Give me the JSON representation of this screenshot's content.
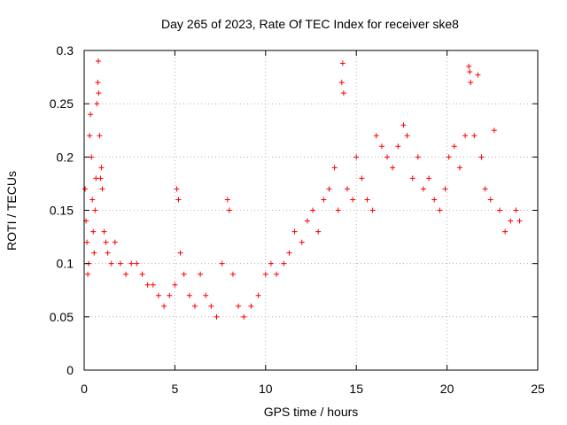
{
  "chart_data": {
    "type": "scatter",
    "title": "Day 265 of 2023, Rate Of TEC Index for receiver ske8",
    "xlabel": "GPS time / hours",
    "ylabel": "ROTI / TECUs",
    "xlim": [
      0,
      25
    ],
    "ylim": [
      0,
      0.3
    ],
    "xticks": [
      0,
      5,
      10,
      15,
      20,
      25
    ],
    "xtick_labels": [
      "0",
      "5",
      "10",
      "15",
      "20",
      "25"
    ],
    "yticks": [
      0,
      0.05,
      0.1,
      0.15,
      0.2,
      0.25,
      0.3
    ],
    "ytick_labels": [
      "0",
      "0.05",
      "0.1",
      "0.15",
      "0.2",
      "0.25",
      "0.3"
    ],
    "grid": true,
    "marker": "+",
    "series_color": "#ff0000",
    "series": [
      {
        "name": "ROTI",
        "points": [
          [
            0.05,
            0.17
          ],
          [
            0.1,
            0.14
          ],
          [
            0.15,
            0.12
          ],
          [
            0.2,
            0.09
          ],
          [
            0.25,
            0.1
          ],
          [
            0.3,
            0.22
          ],
          [
            0.35,
            0.24
          ],
          [
            0.4,
            0.2
          ],
          [
            0.45,
            0.16
          ],
          [
            0.5,
            0.13
          ],
          [
            0.55,
            0.11
          ],
          [
            0.6,
            0.15
          ],
          [
            0.65,
            0.18
          ],
          [
            0.7,
            0.25
          ],
          [
            0.75,
            0.27
          ],
          [
            0.78,
            0.29
          ],
          [
            0.8,
            0.26
          ],
          [
            0.85,
            0.22
          ],
          [
            0.9,
            0.18
          ],
          [
            0.95,
            0.19
          ],
          [
            1.0,
            0.17
          ],
          [
            1.1,
            0.13
          ],
          [
            1.2,
            0.12
          ],
          [
            1.3,
            0.11
          ],
          [
            1.5,
            0.1
          ],
          [
            1.7,
            0.12
          ],
          [
            2.0,
            0.1
          ],
          [
            2.3,
            0.09
          ],
          [
            2.6,
            0.1
          ],
          [
            2.9,
            0.1
          ],
          [
            3.2,
            0.09
          ],
          [
            3.5,
            0.08
          ],
          [
            3.8,
            0.08
          ],
          [
            4.1,
            0.07
          ],
          [
            4.4,
            0.06
          ],
          [
            4.7,
            0.07
          ],
          [
            5.0,
            0.08
          ],
          [
            5.1,
            0.17
          ],
          [
            5.2,
            0.16
          ],
          [
            5.3,
            0.11
          ],
          [
            5.5,
            0.09
          ],
          [
            5.8,
            0.07
          ],
          [
            6.1,
            0.06
          ],
          [
            6.4,
            0.09
          ],
          [
            6.7,
            0.07
          ],
          [
            7.0,
            0.06
          ],
          [
            7.3,
            0.05
          ],
          [
            7.6,
            0.1
          ],
          [
            7.9,
            0.16
          ],
          [
            8.0,
            0.15
          ],
          [
            8.2,
            0.09
          ],
          [
            8.5,
            0.06
          ],
          [
            8.8,
            0.05
          ],
          [
            9.2,
            0.06
          ],
          [
            9.6,
            0.07
          ],
          [
            10.0,
            0.09
          ],
          [
            10.3,
            0.1
          ],
          [
            10.6,
            0.09
          ],
          [
            11.0,
            0.1
          ],
          [
            11.3,
            0.11
          ],
          [
            11.6,
            0.13
          ],
          [
            12.0,
            0.12
          ],
          [
            12.3,
            0.14
          ],
          [
            12.6,
            0.15
          ],
          [
            12.9,
            0.13
          ],
          [
            13.2,
            0.16
          ],
          [
            13.5,
            0.17
          ],
          [
            13.8,
            0.19
          ],
          [
            14.0,
            0.15
          ],
          [
            14.2,
            0.27
          ],
          [
            14.25,
            0.288
          ],
          [
            14.3,
            0.26
          ],
          [
            14.5,
            0.17
          ],
          [
            14.8,
            0.16
          ],
          [
            15.0,
            0.2
          ],
          [
            15.3,
            0.18
          ],
          [
            15.6,
            0.16
          ],
          [
            15.9,
            0.15
          ],
          [
            16.1,
            0.22
          ],
          [
            16.4,
            0.21
          ],
          [
            16.7,
            0.2
          ],
          [
            17.0,
            0.19
          ],
          [
            17.3,
            0.21
          ],
          [
            17.6,
            0.23
          ],
          [
            17.8,
            0.22
          ],
          [
            18.1,
            0.18
          ],
          [
            18.4,
            0.2
          ],
          [
            18.7,
            0.17
          ],
          [
            19.0,
            0.18
          ],
          [
            19.3,
            0.16
          ],
          [
            19.6,
            0.15
          ],
          [
            19.9,
            0.17
          ],
          [
            20.1,
            0.2
          ],
          [
            20.4,
            0.21
          ],
          [
            20.7,
            0.19
          ],
          [
            21.0,
            0.22
          ],
          [
            21.2,
            0.285
          ],
          [
            21.25,
            0.28
          ],
          [
            21.3,
            0.27
          ],
          [
            21.5,
            0.22
          ],
          [
            21.7,
            0.277
          ],
          [
            21.9,
            0.2
          ],
          [
            22.1,
            0.17
          ],
          [
            22.4,
            0.16
          ],
          [
            22.6,
            0.225
          ],
          [
            22.9,
            0.15
          ],
          [
            23.2,
            0.13
          ],
          [
            23.5,
            0.14
          ],
          [
            23.8,
            0.15
          ],
          [
            24.0,
            0.14
          ]
        ]
      }
    ]
  }
}
